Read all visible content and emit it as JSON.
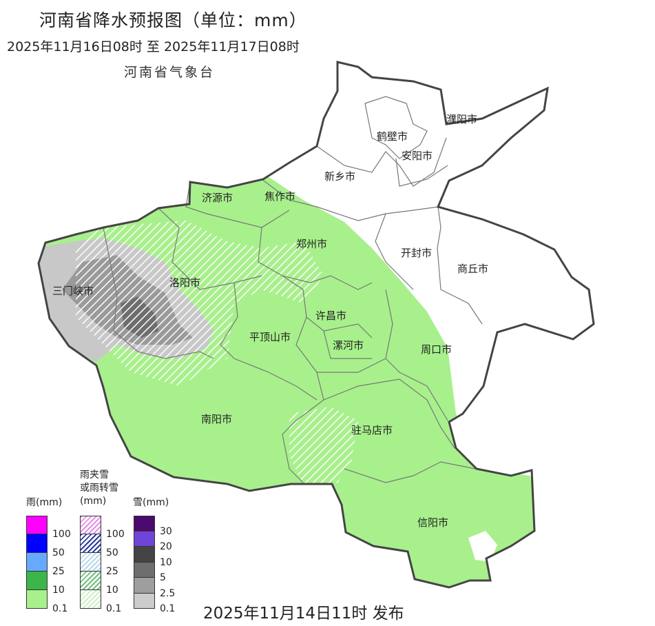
{
  "header": {
    "title": "河南省降水预报图（单位：mm）",
    "period": "2025年11月16日08时  至  2025年11月17日08时",
    "agency": "河南省气象台"
  },
  "footer": {
    "issued": "2025年11月14日11时 发布"
  },
  "cities": [
    "濮阳市",
    "鹤壁市",
    "安阳市",
    "新乡市",
    "济源市",
    "焦作市",
    "郑州市",
    "开封市",
    "商丘市",
    "三门峡市",
    "洛阳市",
    "许昌市",
    "平顶山市",
    "漯河市",
    "周口市",
    "南阳市",
    "驻马店市",
    "信阳市"
  ],
  "legend": {
    "rain": {
      "title": "雨(mm)",
      "colors": [
        "#ff00ff",
        "#0000ff",
        "#66aaff",
        "#3cb64a",
        "#a8f08c"
      ],
      "labels": [
        "100",
        "50",
        "25",
        "10",
        "0.1"
      ]
    },
    "mixed": {
      "title": "雨夹雪\n或雨转雪\n(mm)",
      "title_lines": [
        "雨夹雪",
        "或雨转雪",
        "(mm)"
      ],
      "colors": [
        "#e48ee8",
        "#2a3a9a",
        "#b5d9ee",
        "#6cc07a",
        "#cdeec6"
      ],
      "labels": [
        "100",
        "50",
        "25",
        "10",
        "0.1"
      ]
    },
    "snow": {
      "title": "雪(mm)",
      "colors": [
        "#4b0a6e",
        "#6f45d8",
        "#444444",
        "#6e6e6e",
        "#9e9e9e",
        "#cccccc"
      ],
      "labels": [
        "30",
        "20",
        "10",
        "5",
        "2.5",
        "0.1"
      ]
    }
  },
  "colors": {
    "rain_light": "#a8f08c",
    "snow_light": "#c8c8c8",
    "snow_moderate": "#9a9a9a",
    "snow_heavy": "#6e6e6e",
    "no_precip": "#ffffff"
  }
}
